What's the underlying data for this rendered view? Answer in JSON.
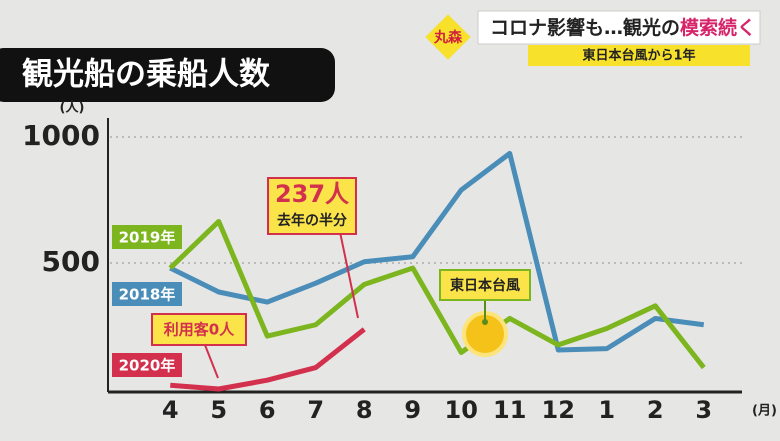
{
  "chart_data": {
    "type": "line",
    "title": "観光船の乗船人数",
    "y_label": "(人)",
    "x_label": "(月)",
    "categories": [
      "4",
      "5",
      "6",
      "7",
      "8",
      "9",
      "10",
      "11",
      "12",
      "1",
      "2",
      "3"
    ],
    "series": [
      {
        "name": "2018年",
        "color": "#4a8db8",
        "values": [
          480,
          385,
          345,
          420,
          505,
          525,
          790,
          935,
          155,
          160,
          280,
          255
        ]
      },
      {
        "name": "2019年",
        "color": "#7cb51e",
        "values": [
          480,
          665,
          210,
          255,
          415,
          480,
          145,
          280,
          175,
          240,
          330,
          85
        ]
      },
      {
        "name": "2020年",
        "color": "#d2304c",
        "values": [
          15,
          0,
          35,
          85,
          237,
          null,
          null,
          null,
          null,
          null,
          null,
          null
        ]
      }
    ],
    "ylim": [
      0,
      1070
    ],
    "yticks": [
      500,
      1000
    ],
    "grid": true,
    "annotations": [
      "237人",
      "去年の半分",
      "利用客0人",
      "東日本台風"
    ]
  },
  "banner": {
    "badge": "丸森",
    "headline": "コロナ影響も…観光の",
    "headline_emphasis": "模索続く",
    "subline": "東日本台風から1年"
  }
}
